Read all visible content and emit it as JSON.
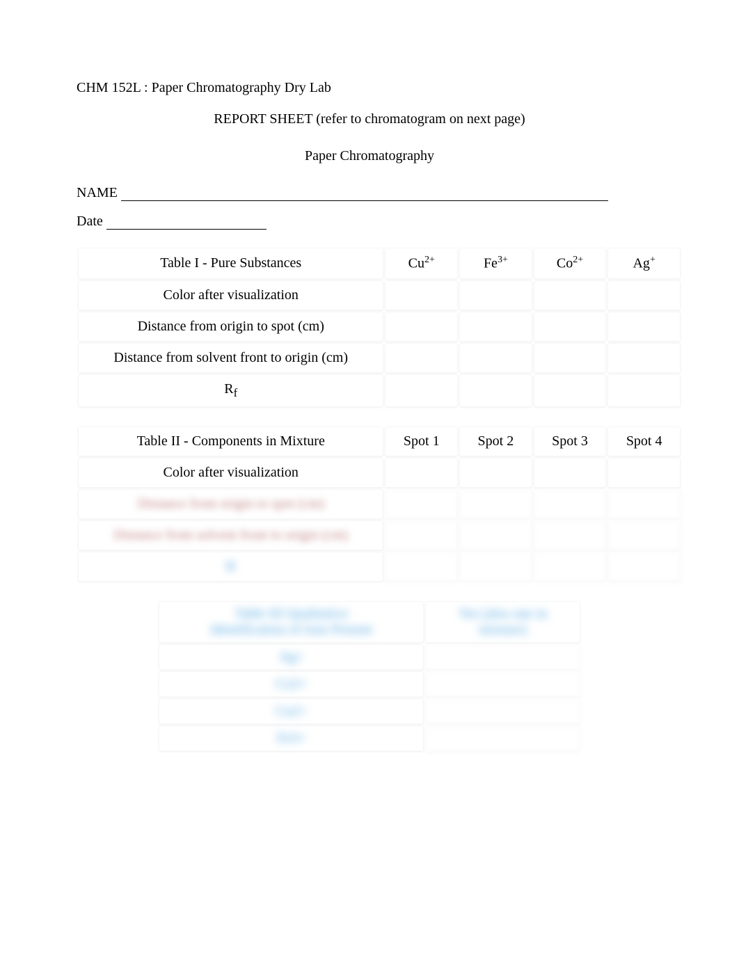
{
  "course": "CHM 152L : Paper Chromatography Dry Lab",
  "subtitle": "REPORT SHEET (refer to chromatogram on next page)",
  "section": "Paper Chromatography",
  "name_label": "NAME",
  "date_label": "Date",
  "table1": {
    "title": "Table I - Pure Substances",
    "cols": [
      "Cu",
      "Fe",
      "Co",
      "Ag"
    ],
    "col_sup": [
      "2+",
      "3+",
      "2+",
      "+"
    ],
    "rows": [
      "Color after visualization",
      "Distance from origin to spot (cm)",
      "Distance from solvent front to origin (cm)"
    ],
    "rf_label_html": "R",
    "rf_sub": "f"
  },
  "table2": {
    "title": "Table II - Components in Mixture",
    "cols": [
      "Spot 1",
      "Spot 2",
      "Spot 3",
      "Spot 4"
    ],
    "rows_visible": [
      "Color after visualization"
    ],
    "rows_blurred": [
      "Distance from origin to spot (cm)",
      "Distance from  solvent front to origin (cm)",
      "R"
    ]
  },
  "table3": {
    "title_l1": "Table III  Qualitative",
    "title_l2": "Identification of Ions Present",
    "right_l1": "Yes (also one in",
    "right_l2": "mixture)",
    "rows": [
      "Ag+",
      "Co2+",
      "Cu2+",
      "Fe3+"
    ]
  },
  "colors": {
    "background": "#ffffff",
    "text": "#000000",
    "blur_text": "#4aa3e0",
    "blur_text_alt": "#c08080",
    "cell_border": "#f6f6f6"
  }
}
